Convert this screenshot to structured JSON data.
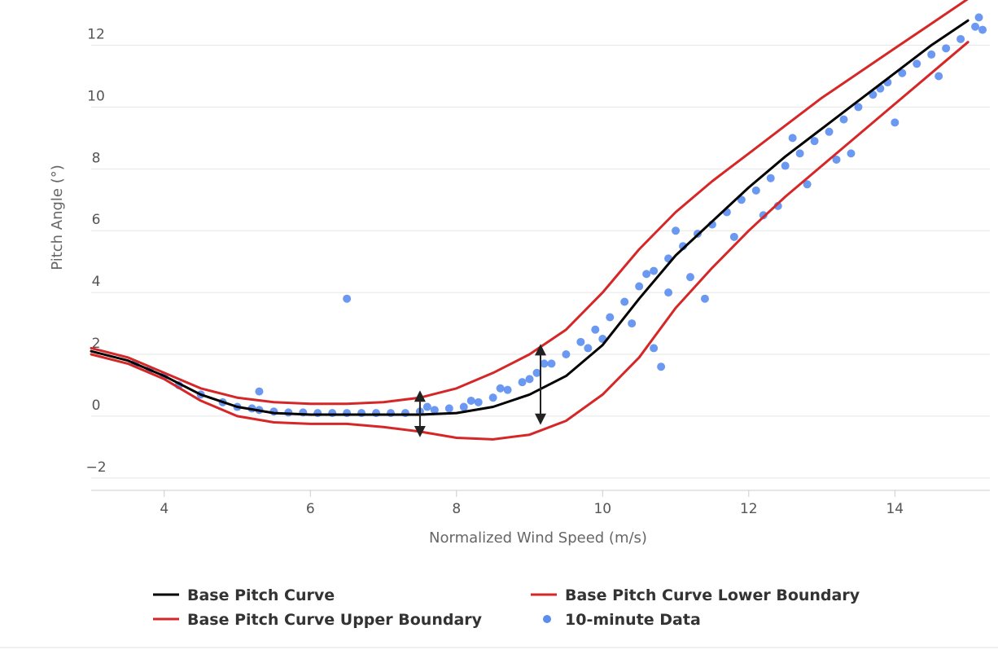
{
  "chart_data": {
    "type": "line",
    "xlabel": "Normalized Wind Speed (m/s)",
    "ylabel": "Pitch Angle (°)",
    "xlim": [
      3,
      15.3
    ],
    "ylim": [
      -2.4,
      13.2
    ],
    "x_ticks": [
      4,
      6,
      8,
      10,
      12,
      14
    ],
    "y_ticks": [
      -2,
      0,
      2,
      4,
      6,
      8,
      10,
      12
    ],
    "y_tick_labels": [
      "−2",
      "0",
      "2",
      "4",
      "6",
      "8",
      "10",
      "12"
    ],
    "grid": "horizontal",
    "legend_position": "bottom",
    "series": [
      {
        "name": "Base Pitch Curve",
        "kind": "line",
        "color": "#000000",
        "x": [
          3,
          3.5,
          4,
          4.5,
          5,
          5.5,
          6,
          6.5,
          7,
          7.5,
          8,
          8.5,
          9,
          9.5,
          10,
          10.5,
          11,
          11.5,
          12,
          12.5,
          13,
          13.5,
          14,
          14.5,
          15
        ],
        "y": [
          2.1,
          1.8,
          1.3,
          0.7,
          0.3,
          0.1,
          0.05,
          0.05,
          0.05,
          0.05,
          0.1,
          0.3,
          0.7,
          1.3,
          2.3,
          3.8,
          5.2,
          6.3,
          7.4,
          8.4,
          9.3,
          10.2,
          11.1,
          12.0,
          12.8
        ]
      },
      {
        "name": "Base Pitch Curve Lower Boundary",
        "kind": "line",
        "color": "#d62728",
        "x": [
          3,
          3.5,
          4,
          4.5,
          5,
          5.5,
          6,
          6.5,
          7,
          7.5,
          8,
          8.5,
          9,
          9.5,
          10,
          10.5,
          11,
          11.5,
          12,
          12.5,
          13,
          13.5,
          14,
          14.5,
          15
        ],
        "y": [
          2.0,
          1.7,
          1.2,
          0.5,
          0.0,
          -0.2,
          -0.25,
          -0.25,
          -0.35,
          -0.5,
          -0.7,
          -0.75,
          -0.6,
          -0.15,
          0.7,
          1.9,
          3.5,
          4.8,
          6.0,
          7.1,
          8.1,
          9.1,
          10.1,
          11.1,
          12.1
        ]
      },
      {
        "name": "Base Pitch Curve Upper Boundary",
        "kind": "line",
        "color": "#d62728",
        "x": [
          3,
          3.5,
          4,
          4.5,
          5,
          5.5,
          6,
          6.5,
          7,
          7.5,
          8,
          8.5,
          9,
          9.5,
          10,
          10.5,
          11,
          11.5,
          12,
          12.5,
          13,
          13.5,
          14,
          14.5,
          15
        ],
        "y": [
          2.2,
          1.9,
          1.4,
          0.9,
          0.6,
          0.45,
          0.4,
          0.4,
          0.45,
          0.6,
          0.9,
          1.4,
          2.0,
          2.8,
          4.0,
          5.4,
          6.6,
          7.6,
          8.5,
          9.4,
          10.3,
          11.1,
          11.9,
          12.7,
          13.5
        ]
      },
      {
        "name": "10-minute Data",
        "kind": "scatter",
        "color": "#5b8def",
        "x": [
          3.6,
          3.8,
          4.0,
          4.2,
          4.5,
          4.8,
          5.0,
          5.2,
          5.3,
          5.5,
          5.7,
          5.9,
          6.1,
          6.3,
          6.5,
          6.7,
          6.9,
          7.1,
          7.3,
          7.5,
          7.7,
          7.9,
          8.1,
          8.3,
          8.5,
          8.7,
          8.9,
          9.1,
          9.3,
          9.5,
          9.7,
          9.9,
          10.1,
          10.3,
          10.5,
          10.7,
          10.9,
          11.1,
          11.3,
          11.5,
          11.7,
          11.9,
          12.1,
          12.3,
          12.5,
          12.7,
          12.9,
          13.1,
          13.3,
          13.5,
          13.7,
          13.9,
          14.1,
          14.3,
          14.5,
          14.7,
          14.9,
          15.1,
          6.5,
          5.3,
          7.6,
          8.2,
          9.2,
          10.0,
          10.4,
          10.7,
          10.9,
          11.0,
          11.2,
          11.8,
          12.4,
          12.8,
          13.4,
          14.0,
          14.6,
          15.15,
          15.2,
          10.8,
          10.6,
          11.4,
          12.2,
          12.6,
          13.2,
          13.8,
          9.8,
          9.0,
          8.6
        ],
        "y": [
          1.7,
          1.5,
          1.3,
          1.0,
          0.7,
          0.45,
          0.3,
          0.25,
          0.2,
          0.15,
          0.12,
          0.12,
          0.1,
          0.1,
          0.1,
          0.1,
          0.1,
          0.1,
          0.1,
          0.15,
          0.2,
          0.25,
          0.3,
          0.45,
          0.6,
          0.85,
          1.1,
          1.4,
          1.7,
          2.0,
          2.4,
          2.8,
          3.2,
          3.7,
          4.2,
          4.7,
          5.1,
          5.5,
          5.9,
          6.2,
          6.6,
          7.0,
          7.3,
          7.7,
          8.1,
          8.5,
          8.9,
          9.2,
          9.6,
          10.0,
          10.4,
          10.8,
          11.1,
          11.4,
          11.7,
          11.9,
          12.2,
          12.6,
          3.8,
          0.8,
          0.3,
          0.5,
          1.7,
          2.5,
          3.0,
          2.2,
          4.0,
          6.0,
          4.5,
          5.8,
          6.8,
          7.5,
          8.5,
          9.5,
          11.0,
          12.9,
          12.5,
          1.6,
          4.6,
          3.8,
          6.5,
          9.0,
          8.3,
          10.6,
          2.2,
          1.2,
          0.9
        ]
      }
    ],
    "annotations": [
      {
        "kind": "double-arrow",
        "x": 7.5,
        "y_from": -0.5,
        "y_to": 0.65
      },
      {
        "kind": "double-arrow",
        "x": 9.15,
        "y_from": -0.1,
        "y_to": 2.15
      }
    ]
  }
}
